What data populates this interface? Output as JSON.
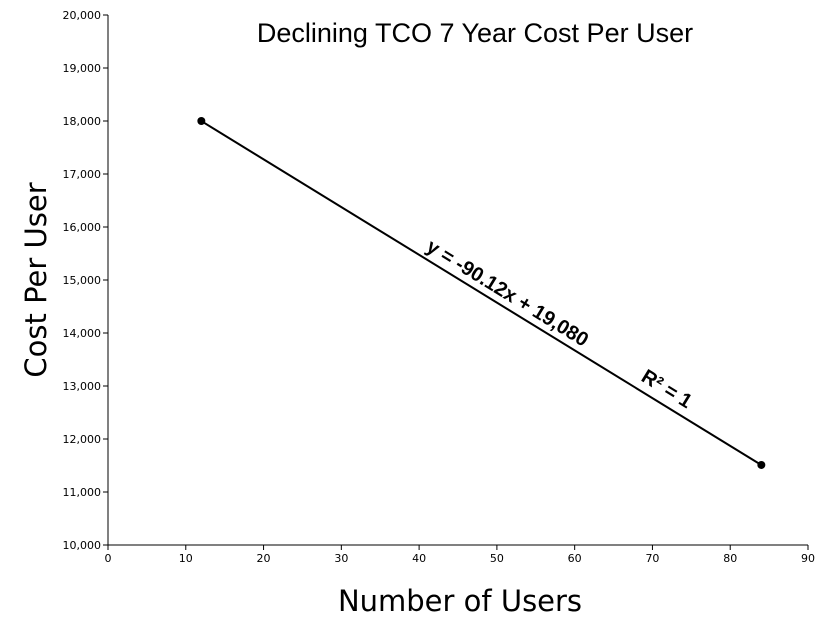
{
  "chart_data": {
    "type": "scatter",
    "title": "Declining TCO 7 Year Cost Per User",
    "xlabel": "Number of Users",
    "ylabel": "Cost Per User",
    "xlim": [
      0,
      90
    ],
    "ylim": [
      10000,
      20000
    ],
    "x_ticks": [
      0,
      10,
      20,
      30,
      40,
      50,
      60,
      70,
      80,
      90
    ],
    "y_ticks": [
      10000,
      11000,
      12000,
      13000,
      14000,
      15000,
      16000,
      17000,
      18000,
      19000,
      20000
    ],
    "x_tick_labels": [
      "0",
      "10",
      "20",
      "30",
      "40",
      "50",
      "60",
      "70",
      "80",
      "90"
    ],
    "y_tick_labels": [
      "10,000",
      "11,000",
      "12,000",
      "13,000",
      "14,000",
      "15,000",
      "16,000",
      "17,000",
      "18,000",
      "19,000",
      "20,000"
    ],
    "series": [
      {
        "x": [
          12,
          84
        ],
        "y": [
          18000,
          11510
        ]
      }
    ],
    "trendline": {
      "slope": -90.12,
      "intercept": 19080,
      "equation_label": "y = -90.12x + 19,080",
      "r2_label": "R² = 1"
    },
    "grid": false,
    "legend": "none"
  }
}
